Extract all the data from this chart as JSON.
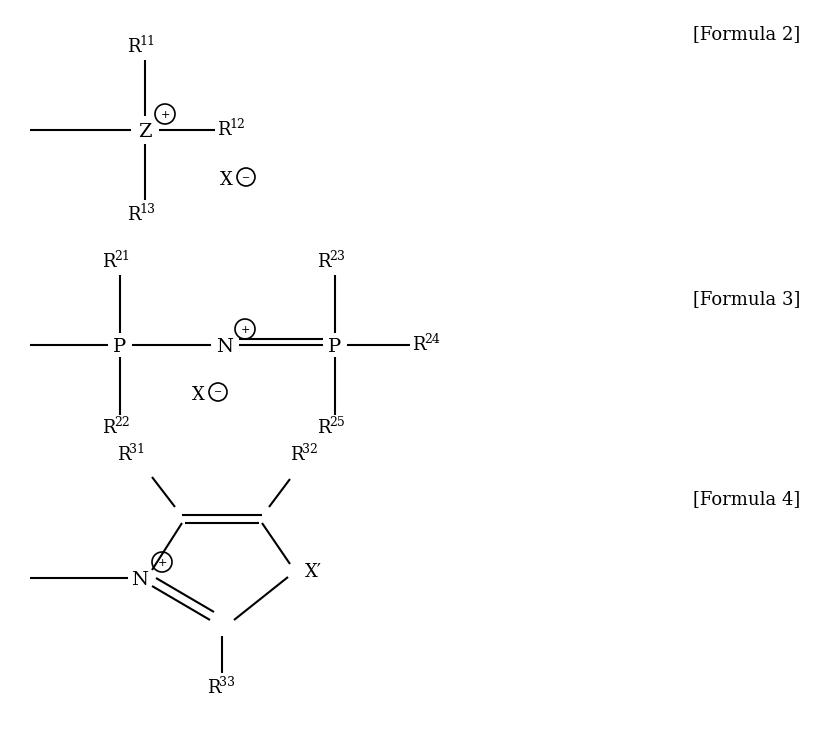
{
  "background_color": "#ffffff",
  "text_color": "#000000",
  "formula2_label": "[Formula 2]",
  "formula3_label": "[Formula 3]",
  "formula4_label": "[Formula 4]",
  "font_size": 13,
  "font_size_super": 9,
  "line_width": 1.5
}
